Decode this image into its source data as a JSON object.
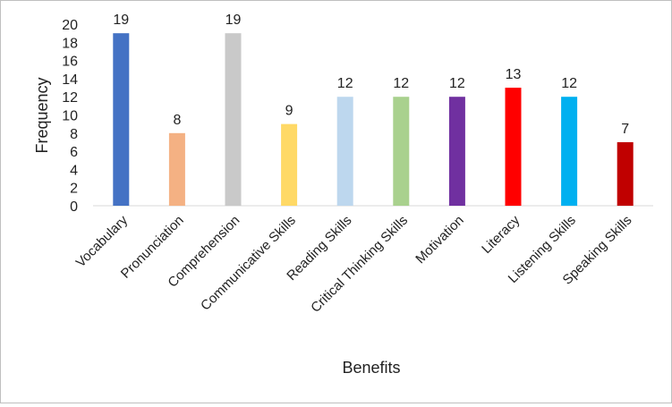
{
  "chart_data": {
    "type": "bar",
    "title": "",
    "xlabel": "Benefits",
    "ylabel": "Frequency",
    "ylim": [
      0,
      20
    ],
    "yticks": [
      0,
      2,
      4,
      6,
      8,
      10,
      12,
      14,
      16,
      18,
      20
    ],
    "grid": false,
    "legend": "none",
    "categories": [
      "Vocabulary",
      "Pronunciation",
      "Comprehension",
      "Communicative Skills",
      "Reading Skills",
      "Critical Thinking Skills",
      "Motivation",
      "Literacy",
      "Listening Skills",
      "Speaking Skills"
    ],
    "values": [
      19,
      8,
      19,
      9,
      12,
      12,
      12,
      13,
      12,
      7
    ],
    "colors": [
      "#4472c4",
      "#f4b183",
      "#c9c9c9",
      "#ffd966",
      "#bdd7ee",
      "#a9d18e",
      "#7030a0",
      "#ff0000",
      "#00b0f0",
      "#c00000"
    ]
  }
}
